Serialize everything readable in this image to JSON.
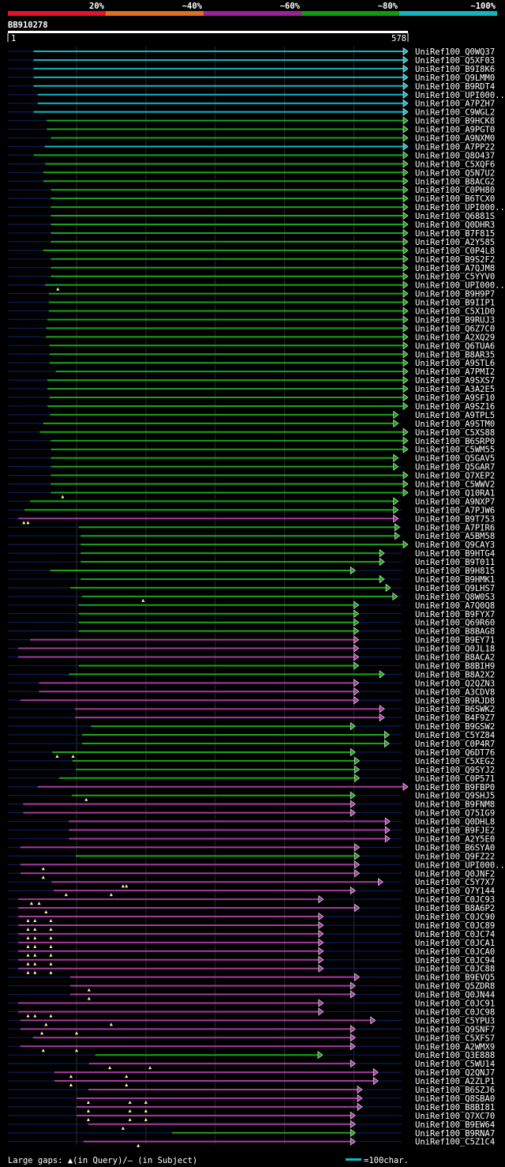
{
  "chart_data": {
    "type": "alignment-overview",
    "query_name": "BB910278",
    "query_range": [
      1,
      578
    ],
    "identity_legend": [
      {
        "label": "20%",
        "color": "#e8112d"
      },
      {
        "label": "~40%",
        "color": "#e0701e"
      },
      {
        "label": "~60%",
        "color": "#992299"
      },
      {
        "label": "~80%",
        "color": "#119911"
      },
      {
        "label": "~100%",
        "color": "#12b6c0"
      }
    ],
    "colors": {
      "cyan": "#12b6c0",
      "green": "#19a519",
      "magenta": "#a43aa3",
      "navy": "#0c1b5c",
      "gap_marker": "#ffff99"
    },
    "footer": {
      "gaps_label": "Large gaps: ▲(in Query)/– (in Subject)",
      "scale_label": "=100char."
    },
    "hits": [
      {
        "id": "UniRef100_Q0WQ37",
        "c": "c",
        "s": 38,
        "e": 578,
        "g": []
      },
      {
        "id": "UniRef100_Q5XF03",
        "c": "c",
        "s": 38,
        "e": 578,
        "g": []
      },
      {
        "id": "UniRef100_B9I8K6",
        "c": "c",
        "s": 38,
        "e": 578,
        "g": []
      },
      {
        "id": "UniRef100_Q9LMM0",
        "c": "c",
        "s": 38,
        "e": 578,
        "g": []
      },
      {
        "id": "UniRef100_B9RDT4",
        "c": "c",
        "s": 38,
        "e": 578,
        "g": []
      },
      {
        "id": "UniRef100_UPI000..",
        "c": "c",
        "s": 44,
        "e": 578,
        "g": []
      },
      {
        "id": "UniRef100_A7PZH7",
        "c": "c",
        "s": 44,
        "e": 578,
        "g": []
      },
      {
        "id": "UniRef100_C9WGL2",
        "c": "c",
        "s": 38,
        "e": 578,
        "g": []
      },
      {
        "id": "UniRef100_B9HCK8",
        "c": "g",
        "s": 57,
        "e": 578,
        "g": []
      },
      {
        "id": "UniRef100_A9PGT0",
        "c": "g",
        "s": 57,
        "e": 578,
        "g": []
      },
      {
        "id": "UniRef100_A9NXM0",
        "c": "g",
        "s": 63,
        "e": 578,
        "g": []
      },
      {
        "id": "UniRef100_A7PP22",
        "c": "c",
        "s": 54,
        "e": 578,
        "g": []
      },
      {
        "id": "UniRef100_Q8O437",
        "c": "g",
        "s": 38,
        "e": 578,
        "g": []
      },
      {
        "id": "UniRef100_C5XQF6",
        "c": "g",
        "s": 55,
        "e": 578,
        "g": []
      },
      {
        "id": "UniRef100_Q5N7U2",
        "c": "g",
        "s": 52,
        "e": 578,
        "g": []
      },
      {
        "id": "UniRef100_B8ACG2",
        "c": "g",
        "s": 52,
        "e": 578,
        "g": []
      },
      {
        "id": "UniRef100_C0PH80",
        "c": "g",
        "s": 63,
        "e": 578,
        "g": []
      },
      {
        "id": "UniRef100_B6TCX0",
        "c": "g",
        "s": 63,
        "e": 578,
        "g": []
      },
      {
        "id": "UniRef100_UPI000..",
        "c": "g",
        "s": 63,
        "e": 578,
        "g": []
      },
      {
        "id": "UniRef100_Q6881S",
        "c": "g",
        "s": 63,
        "e": 578,
        "g": []
      },
      {
        "id": "UniRef100_Q0DHR3",
        "c": "g",
        "s": 63,
        "e": 578,
        "g": []
      },
      {
        "id": "UniRef100_B7F815",
        "c": "g",
        "s": 63,
        "e": 578,
        "g": []
      },
      {
        "id": "UniRef100_A2Y585",
        "c": "g",
        "s": 63,
        "e": 578,
        "g": []
      },
      {
        "id": "UniRef100_C0P4L8",
        "c": "g",
        "s": 52,
        "e": 578,
        "g": []
      },
      {
        "id": "UniRef100_B9S2F2",
        "c": "g",
        "s": 63,
        "e": 578,
        "g": []
      },
      {
        "id": "UniRef100_A7QJM8",
        "c": "g",
        "s": 63,
        "e": 578,
        "g": []
      },
      {
        "id": "UniRef100_C5YYV0",
        "c": "g",
        "s": 63,
        "e": 578,
        "g": []
      },
      {
        "id": "UniRef100_UPI000..",
        "c": "g",
        "s": 55,
        "e": 578,
        "g": [
          73
        ]
      },
      {
        "id": "UniRef100_B9H9P7",
        "c": "g",
        "s": 60,
        "e": 578,
        "g": []
      },
      {
        "id": "UniRef100_B9IIP1",
        "c": "g",
        "s": 60,
        "e": 578,
        "g": []
      },
      {
        "id": "UniRef100_C5X1D0",
        "c": "g",
        "s": 60,
        "e": 578,
        "g": []
      },
      {
        "id": "UniRef100_B9RUJ3",
        "c": "g",
        "s": 58,
        "e": 578,
        "g": []
      },
      {
        "id": "UniRef100_Q6Z7C0",
        "c": "g",
        "s": 56,
        "e": 578,
        "g": []
      },
      {
        "id": "UniRef100_A2XQ29",
        "c": "g",
        "s": 56,
        "e": 578,
        "g": []
      },
      {
        "id": "UniRef100_Q6TUA6",
        "c": "g",
        "s": 61,
        "e": 578,
        "g": []
      },
      {
        "id": "UniRef100_B8AR35",
        "c": "g",
        "s": 61,
        "e": 578,
        "g": []
      },
      {
        "id": "UniRef100_A9STL6",
        "c": "g",
        "s": 61,
        "e": 578,
        "g": []
      },
      {
        "id": "UniRef100_A7PMI2",
        "c": "g",
        "s": 70,
        "e": 578,
        "g": []
      },
      {
        "id": "UniRef100_A9SXS7",
        "c": "g",
        "s": 58,
        "e": 578,
        "g": []
      },
      {
        "id": "UniRef100_A3A2E5",
        "c": "g",
        "s": 58,
        "e": 578,
        "g": []
      },
      {
        "id": "UniRef100_A9SF10",
        "c": "g",
        "s": 61,
        "e": 578,
        "g": []
      },
      {
        "id": "UniRef100_A9SZ16",
        "c": "g",
        "s": 58,
        "e": 578,
        "g": []
      },
      {
        "id": "UniRef100_A9TPL5",
        "c": "g",
        "s": 62,
        "e": 564,
        "g": []
      },
      {
        "id": "UniRef100_A9STM0",
        "c": "g",
        "s": 52,
        "e": 564,
        "g": []
      },
      {
        "id": "UniRef100_C5XS88",
        "c": "g",
        "s": 47,
        "e": 578,
        "g": []
      },
      {
        "id": "UniRef100_B6SRP0",
        "c": "g",
        "s": 63,
        "e": 578,
        "g": []
      },
      {
        "id": "UniRef100_C5WM55",
        "c": "g",
        "s": 63,
        "e": 578,
        "g": []
      },
      {
        "id": "UniRef100_Q5GAV5",
        "c": "g",
        "s": 63,
        "e": 564,
        "g": []
      },
      {
        "id": "UniRef100_Q5GAR7",
        "c": "g",
        "s": 63,
        "e": 564,
        "g": []
      },
      {
        "id": "UniRef100_Q7XEP2",
        "c": "g",
        "s": 63,
        "e": 578,
        "g": []
      },
      {
        "id": "UniRef100_C5WWV2",
        "c": "g",
        "s": 63,
        "e": 578,
        "g": []
      },
      {
        "id": "UniRef100_Q10RA1",
        "c": "g",
        "s": 63,
        "e": 578,
        "g": [
          80
        ]
      },
      {
        "id": "UniRef100_A9NXP7",
        "c": "g",
        "s": 33,
        "e": 564,
        "g": []
      },
      {
        "id": "UniRef100_A7PJW6",
        "c": "g",
        "s": 25,
        "e": 564,
        "g": []
      },
      {
        "id": "UniRef100_B9T753",
        "c": "m",
        "s": 16,
        "e": 564,
        "g": [
          24,
          30
        ]
      },
      {
        "id": "UniRef100_A7PIR6",
        "c": "g",
        "s": 103,
        "e": 566,
        "g": []
      },
      {
        "id": "UniRef100_A5BM58",
        "c": "g",
        "s": 106,
        "e": 566,
        "g": []
      },
      {
        "id": "UniRef100_Q9CAY3",
        "c": "g",
        "s": 106,
        "e": 578,
        "g": []
      },
      {
        "id": "UniRef100_B9HTG4",
        "c": "g",
        "s": 106,
        "e": 544,
        "g": []
      },
      {
        "id": "UniRef100_B9T011",
        "c": "g",
        "s": 106,
        "e": 544,
        "g": []
      },
      {
        "id": "UniRef100_B9H815",
        "c": "g",
        "s": 62,
        "e": 502,
        "g": []
      },
      {
        "id": "UniRef100_B9HMK1",
        "c": "g",
        "s": 106,
        "e": 544,
        "g": []
      },
      {
        "id": "UniRef100_Q9LHS7",
        "c": "g",
        "s": 91,
        "e": 553,
        "g": []
      },
      {
        "id": "UniRef100_Q8W0S3",
        "c": "g",
        "s": 108,
        "e": 563,
        "g": [
          196
        ]
      },
      {
        "id": "UniRef100_A7Q0Q8",
        "c": "g",
        "s": 103,
        "e": 507,
        "g": []
      },
      {
        "id": "UniRef100_B9FYX7",
        "c": "g",
        "s": 103,
        "e": 507,
        "g": []
      },
      {
        "id": "UniRef100_Q69R60",
        "c": "g",
        "s": 103,
        "e": 507,
        "g": []
      },
      {
        "id": "UniRef100_B8BAG8",
        "c": "g",
        "s": 103,
        "e": 507,
        "g": []
      },
      {
        "id": "UniRef100_B9EY71",
        "c": "m",
        "s": 33,
        "e": 507,
        "g": []
      },
      {
        "id": "UniRef100_Q0JL18",
        "c": "m",
        "s": 16,
        "e": 507,
        "g": []
      },
      {
        "id": "UniRef100_B8ACA2",
        "c": "m",
        "s": 16,
        "e": 507,
        "g": []
      },
      {
        "id": "UniRef100_B8BIH9",
        "c": "g",
        "s": 103,
        "e": 507,
        "g": []
      },
      {
        "id": "UniRef100_B8A2X2",
        "c": "g",
        "s": 89,
        "e": 544,
        "g": []
      },
      {
        "id": "UniRef100_Q2QZN3",
        "c": "m",
        "s": 46,
        "e": 507,
        "g": []
      },
      {
        "id": "UniRef100_A3CDV8",
        "c": "m",
        "s": 46,
        "e": 507,
        "g": []
      },
      {
        "id": "UniRef100_B9RJD8",
        "c": "m",
        "s": 19,
        "e": 507,
        "g": []
      },
      {
        "id": "UniRef100_B6SWK2",
        "c": "m",
        "s": 98,
        "e": 544,
        "g": []
      },
      {
        "id": "UniRef100_B4F9Z7",
        "c": "m",
        "s": 98,
        "e": 544,
        "g": []
      },
      {
        "id": "UniRef100_B9GSW2",
        "c": "g",
        "s": 121,
        "e": 502,
        "g": []
      },
      {
        "id": "UniRef100_C5YZ84",
        "c": "g",
        "s": 108,
        "e": 551,
        "g": []
      },
      {
        "id": "UniRef100_C0P4R7",
        "c": "g",
        "s": 108,
        "e": 551,
        "g": []
      },
      {
        "id": "UniRef100_Q6DT76",
        "c": "g",
        "s": 65,
        "e": 502,
        "g": [
          72,
          95
        ]
      },
      {
        "id": "UniRef100_C5XEG2",
        "c": "g",
        "s": 94,
        "e": 508,
        "g": []
      },
      {
        "id": "UniRef100_Q9SYJ2",
        "c": "g",
        "s": 99,
        "e": 508,
        "g": []
      },
      {
        "id": "UniRef100_C0P571",
        "c": "g",
        "s": 75,
        "e": 508,
        "g": []
      },
      {
        "id": "UniRef100_B9FBP0",
        "c": "m",
        "s": 44,
        "e": 578,
        "g": []
      },
      {
        "id": "UniRef100_Q9SHJ5",
        "c": "g",
        "s": 93,
        "e": 502,
        "g": [
          114
        ]
      },
      {
        "id": "UniRef100_B9FNM8",
        "c": "m",
        "s": 23,
        "e": 502,
        "g": []
      },
      {
        "id": "UniRef100_Q75IG9",
        "c": "m",
        "s": 23,
        "e": 502,
        "g": []
      },
      {
        "id": "UniRef100_Q0DHL8",
        "c": "m",
        "s": 89,
        "e": 552,
        "g": []
      },
      {
        "id": "UniRef100_B9FJE2",
        "c": "m",
        "s": 89,
        "e": 552,
        "g": []
      },
      {
        "id": "UniRef100_A2Y5E0",
        "c": "m",
        "s": 89,
        "e": 552,
        "g": []
      },
      {
        "id": "UniRef100_B6SYA0",
        "c": "m",
        "s": 19,
        "e": 508,
        "g": []
      },
      {
        "id": "UniRef100_Q9FZ22",
        "c": "g",
        "s": 99,
        "e": 508,
        "g": []
      },
      {
        "id": "UniRef100_UPI000..",
        "c": "m",
        "s": 19,
        "e": 508,
        "g": [
          52
        ]
      },
      {
        "id": "UniRef100_Q0JNF2",
        "c": "m",
        "s": 19,
        "e": 508,
        "g": [
          52
        ]
      },
      {
        "id": "UniRef100_C5Y7X7",
        "c": "m",
        "s": 64,
        "e": 542,
        "g": [
          167,
          172
        ]
      },
      {
        "id": "UniRef100_Q7Y144",
        "c": "m",
        "s": 67,
        "e": 502,
        "g": [
          85,
          150
        ]
      },
      {
        "id": "UniRef100_C0JC93",
        "c": "m",
        "s": 16,
        "e": 456,
        "g": [
          35,
          46
        ]
      },
      {
        "id": "UniRef100_B8A6P2",
        "c": "m",
        "s": 16,
        "e": 508,
        "g": [
          56
        ]
      },
      {
        "id": "UniRef100_C0JC90",
        "c": "m",
        "s": 16,
        "e": 456,
        "g": [
          30,
          40,
          63
        ]
      },
      {
        "id": "UniRef100_C0JC89",
        "c": "m",
        "s": 16,
        "e": 456,
        "g": [
          30,
          40,
          63
        ]
      },
      {
        "id": "UniRef100_C0JC74",
        "c": "m",
        "s": 16,
        "e": 456,
        "g": [
          30,
          40,
          63
        ]
      },
      {
        "id": "UniRef100_C0JCA1",
        "c": "m",
        "s": 16,
        "e": 456,
        "g": [
          30,
          40,
          63
        ]
      },
      {
        "id": "UniRef100_C0JCA0",
        "c": "m",
        "s": 16,
        "e": 456,
        "g": [
          30,
          40,
          63
        ]
      },
      {
        "id": "UniRef100_C0JC94",
        "c": "m",
        "s": 16,
        "e": 456,
        "g": [
          30,
          40,
          63
        ]
      },
      {
        "id": "UniRef100_C0JC88",
        "c": "m",
        "s": 16,
        "e": 456,
        "g": [
          30,
          40,
          63
        ]
      },
      {
        "id": "UniRef100_B9EVQ5",
        "c": "m",
        "s": 91,
        "e": 508,
        "g": []
      },
      {
        "id": "UniRef100_Q5ZDR8",
        "c": "m",
        "s": 91,
        "e": 502,
        "g": [
          118
        ]
      },
      {
        "id": "UniRef100_Q0JN44",
        "c": "m",
        "s": 91,
        "e": 502,
        "g": [
          118
        ]
      },
      {
        "id": "UniRef100_C0JC91",
        "c": "m",
        "s": 16,
        "e": 456,
        "g": []
      },
      {
        "id": "UniRef100_C0JC98",
        "c": "m",
        "s": 16,
        "e": 456,
        "g": [
          30,
          40,
          63
        ]
      },
      {
        "id": "UniRef100_C5YPU3",
        "c": "m",
        "s": 19,
        "e": 531,
        "g": [
          56,
          150
        ]
      },
      {
        "id": "UniRef100_Q9SNF7",
        "c": "m",
        "s": 19,
        "e": 502,
        "g": [
          50,
          100
        ]
      },
      {
        "id": "UniRef100_C5XFS7",
        "c": "m",
        "s": 37,
        "e": 502,
        "g": []
      },
      {
        "id": "UniRef100_A2WMX9",
        "c": "m",
        "s": 19,
        "e": 502,
        "g": [
          52,
          100
        ]
      },
      {
        "id": "UniRef100_Q3E888",
        "c": "g",
        "s": 127,
        "e": 455,
        "g": []
      },
      {
        "id": "UniRef100_C5WU14",
        "c": "m",
        "s": 118,
        "e": 502,
        "g": [
          148,
          206
        ]
      },
      {
        "id": "UniRef100_Q2QNJ7",
        "c": "m",
        "s": 68,
        "e": 535,
        "g": [
          92,
          172
        ]
      },
      {
        "id": "UniRef100_A2ZLP1",
        "c": "m",
        "s": 68,
        "e": 535,
        "g": [
          92,
          172
        ]
      },
      {
        "id": "UniRef100_B6SZJ6",
        "c": "m",
        "s": 117,
        "e": 512,
        "g": []
      },
      {
        "id": "UniRef100_Q8SBA0",
        "c": "m",
        "s": 100,
        "e": 512,
        "g": [
          117,
          177,
          200
        ]
      },
      {
        "id": "UniRef100_B8BI81",
        "c": "m",
        "s": 100,
        "e": 512,
        "g": [
          117,
          177,
          200
        ]
      },
      {
        "id": "UniRef100_Q7XC70",
        "c": "m",
        "s": 100,
        "e": 502,
        "g": [
          117,
          177,
          200
        ]
      },
      {
        "id": "UniRef100_B9EW64",
        "c": "m",
        "s": 117,
        "e": 502,
        "g": [
          167
        ]
      },
      {
        "id": "UniRef100_B9RNA7",
        "c": "g",
        "s": 238,
        "e": 502,
        "g": []
      },
      {
        "id": "UniRef100_C5Z1C4",
        "c": "m",
        "s": 110,
        "e": 502,
        "g": [
          189
        ]
      }
    ]
  }
}
